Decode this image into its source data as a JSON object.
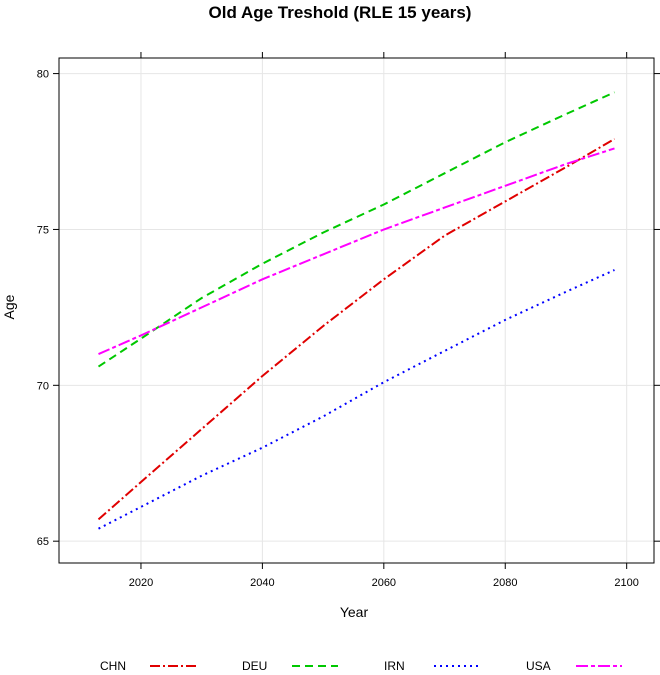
{
  "chart_data": {
    "type": "line",
    "title": "Old Age Treshold (RLE 15 years)",
    "xlabel": "Year",
    "ylabel": "Age",
    "xlim": [
      2006.5,
      2104.5
    ],
    "ylim": [
      64.3,
      80.5
    ],
    "xticks": [
      2020,
      2040,
      2060,
      2080,
      2100
    ],
    "yticks": [
      65,
      70,
      75,
      80
    ],
    "grid": true,
    "legend_position": "bottom",
    "series": [
      {
        "name": "CHN",
        "color": "#e00000",
        "dash": "10,3,2,3",
        "x": [
          2013,
          2020,
          2030,
          2040,
          2050,
          2060,
          2070,
          2080,
          2090,
          2098
        ],
        "y": [
          65.7,
          66.9,
          68.6,
          70.3,
          71.9,
          73.4,
          74.8,
          75.9,
          77.0,
          77.9
        ]
      },
      {
        "name": "DEU",
        "color": "#00c800",
        "dash": "8,5",
        "x": [
          2013,
          2020,
          2030,
          2040,
          2050,
          2060,
          2070,
          2080,
          2090,
          2098
        ],
        "y": [
          70.6,
          71.5,
          72.8,
          73.9,
          74.9,
          75.8,
          76.8,
          77.8,
          78.7,
          79.4
        ]
      },
      {
        "name": "IRN",
        "color": "#0000ff",
        "dash": "2,4",
        "x": [
          2013,
          2020,
          2030,
          2040,
          2050,
          2060,
          2070,
          2080,
          2090,
          2098
        ],
        "y": [
          65.4,
          66.1,
          67.1,
          68.0,
          69.0,
          70.1,
          71.1,
          72.1,
          73.0,
          73.7
        ]
      },
      {
        "name": "USA",
        "color": "#ff00ff",
        "dash": "12,3,4,3",
        "x": [
          2013,
          2020,
          2030,
          2040,
          2050,
          2060,
          2070,
          2080,
          2090,
          2098
        ],
        "y": [
          71.0,
          71.6,
          72.5,
          73.4,
          74.2,
          75.0,
          75.7,
          76.4,
          77.1,
          77.6
        ]
      }
    ]
  }
}
